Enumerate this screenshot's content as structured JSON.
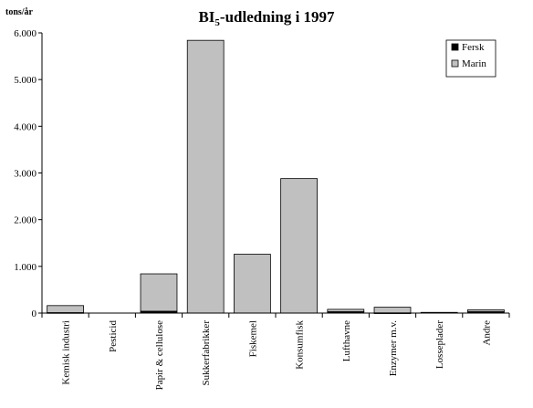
{
  "chart_data": {
    "type": "bar",
    "stacked": true,
    "title_main": "BI",
    "title_sub": "5",
    "title_rest": "-udledning i 1997",
    "unit_label": "tons/år",
    "ylim": [
      0,
      6000
    ],
    "yticks": [
      "0",
      "1.000",
      "2.000",
      "3.000",
      "4.000",
      "5.000",
      "6.000"
    ],
    "ytick_values": [
      0,
      1000,
      2000,
      3000,
      4000,
      5000,
      6000
    ],
    "categories": [
      "Kemisk industri",
      "Pesticid",
      "Papir & cellulose",
      "Sukkerfabrikker",
      "Fiskemel",
      "Konsumfisk",
      "Lufthavne",
      "Enzymer m.v.",
      "Losseplader",
      "Andre"
    ],
    "series": [
      {
        "name": "Fersk",
        "color": "#000000",
        "values": [
          10,
          0,
          40,
          0,
          0,
          0,
          30,
          5,
          15,
          30
        ]
      },
      {
        "name": "Marin",
        "color": "#c0c0c0",
        "values": [
          150,
          0,
          800,
          5840,
          1260,
          2880,
          50,
          120,
          0,
          40
        ]
      }
    ],
    "legend_position": "top-right",
    "grid": false
  }
}
